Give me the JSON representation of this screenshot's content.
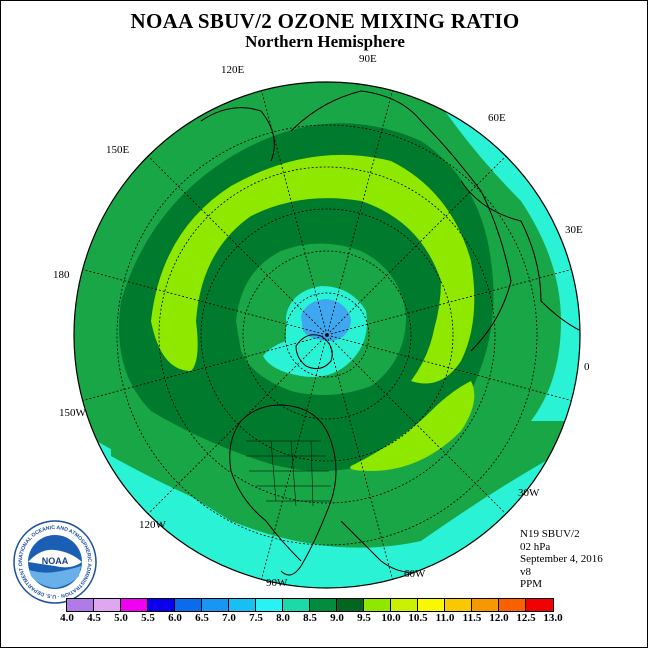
{
  "title": "NOAA SBUV/2 OZONE MIXING RATIO",
  "subtitle": "Northern Hemisphere",
  "longitude_labels": [
    "90E",
    "60E",
    "30E",
    "0",
    "30W",
    "60W",
    "90W",
    "120W",
    "150W",
    "180",
    "150E",
    "120E"
  ],
  "info": {
    "satellite": "N19 SBUV/2",
    "level": "02 hPa",
    "date": "September 4, 2016",
    "version": "v8",
    "units": "PPM"
  },
  "logo": {
    "text": "NOAA",
    "ring_text": "NATIONAL OCEANIC AND ATMOSPHERIC ADMINISTRATION · U.S. DEPARTMENT OF COMMERCE"
  },
  "colorbar": {
    "ticks": [
      "4.0",
      "4.5",
      "5.0",
      "5.5",
      "6.0",
      "6.5",
      "7.0",
      "7.5",
      "8.0",
      "8.5",
      "9.0",
      "9.5",
      "10.0",
      "10.5",
      "11.0",
      "11.5",
      "12.0",
      "12.5",
      "13.0"
    ],
    "colors": [
      "#b07ae8",
      "#dfa6f2",
      "#f000f0",
      "#0a00ee",
      "#0a6cec",
      "#1996f3",
      "#17bff2",
      "#29f2f5",
      "#1cd9a8",
      "#008c3c",
      "#006620",
      "#8ee800",
      "#c8f000",
      "#f8f800",
      "#f8c800",
      "#f89800",
      "#f86000",
      "#f00000",
      "#8b4513"
    ]
  },
  "contour_levels_shown": [
    "7.0",
    "7.5",
    "8.0",
    "8.5",
    "9.0",
    "9.5"
  ]
}
